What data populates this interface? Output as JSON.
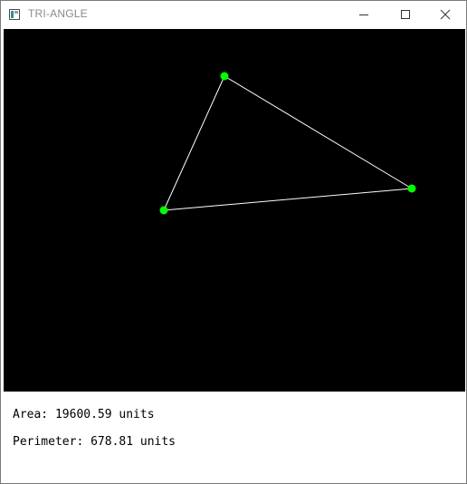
{
  "window": {
    "title": "TRI-ANGLE",
    "controls": {
      "minimize_icon": "minimize-icon",
      "maximize_icon": "maximize-icon",
      "close_icon": "close-icon"
    }
  },
  "canvas": {
    "background": "#000000",
    "vertex_color": "#00ff00",
    "edge_color": "#ffffff"
  },
  "info": {
    "area_text": "Area: 19600.59 units",
    "perimeter_text": "Perimeter: 678.81 units"
  }
}
